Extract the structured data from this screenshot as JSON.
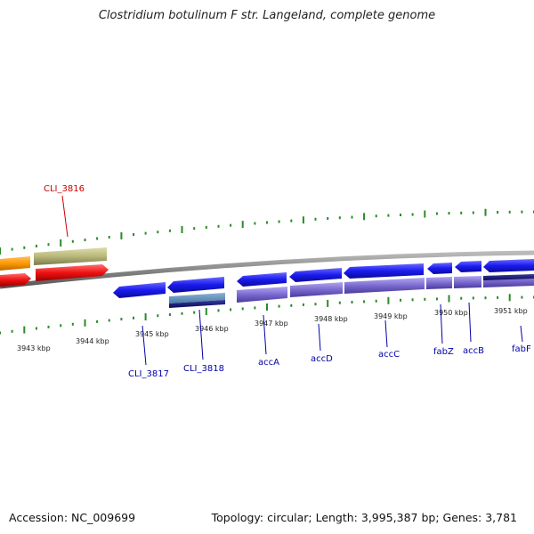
{
  "title": "Clostridium botulinum F str. Langeland, complete genome",
  "footer": {
    "accession": "Accession: NC_009699",
    "topology": "Topology: circular; Length: 3,995,387 bp; Genes: 3,781"
  },
  "kbp_labels": [
    "3943 kbp",
    "3944 kbp",
    "3945 kbp",
    "3946 kbp",
    "3947 kbp",
    "3948 kbp",
    "3949 kbp",
    "3950 kbp",
    "3951 kbp"
  ],
  "gene_labels": {
    "cli_3816": "CLI_3816",
    "cli_3817": "CLI_3817",
    "cli_3818": "CLI_3818",
    "accA": "accA",
    "accD": "accD",
    "accC": "accC",
    "fabZ": "fabZ",
    "accB": "accB",
    "fabF": "fabF"
  },
  "colors": {
    "highlight_label": "#cc0000",
    "gene_label": "#0000aa",
    "tick": "#2a8a2a",
    "gene_blue": "#1a1aee",
    "gene_red": "#ee1111",
    "gene_orange": "#ff9900",
    "gene_khaki": "#b8b87a",
    "cds_violet": "#7a6ad0",
    "backbone": "#888888"
  }
}
